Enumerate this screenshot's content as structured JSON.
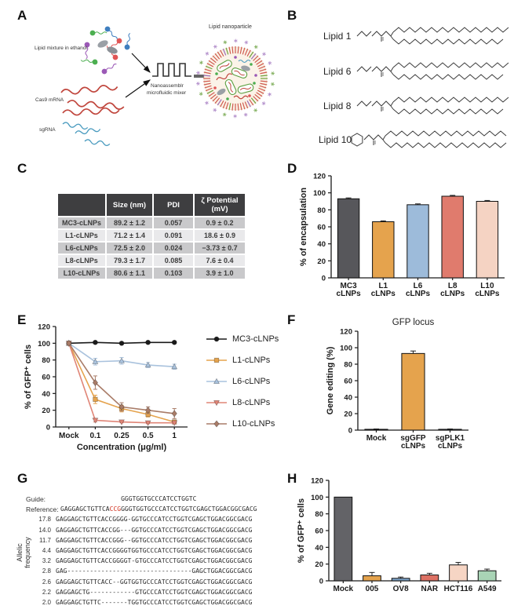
{
  "figure": {
    "panels": {
      "a": {
        "letter": "A",
        "lipid_mixture_label": "Lipid mixture in ethanol",
        "cas9_label": "Cas9 mRNA",
        "sgrna_label": "sgRNA",
        "mixer_label_line1": "Nanoassemblr",
        "mixer_label_line2": "microfluidic mixer",
        "nanoparticle_label": "Lipid nanoparticle"
      },
      "b": {
        "letter": "B",
        "lipids": [
          "Lipid 1",
          "Lipid 6",
          "Lipid 8",
          "Lipid 10"
        ]
      },
      "c": {
        "letter": "C",
        "table": {
          "col_headers": [
            "Size (nm)",
            "PDI",
            "ζ Potential (mV)"
          ],
          "rows": [
            [
              "MC3-cLNPs",
              "89.2 ± 1.2",
              "0.057",
              "0.9 ± 0.2"
            ],
            [
              "L1-cLNPs",
              "71.2 ± 1.4",
              "0.091",
              "18.6 ± 0.9"
            ],
            [
              "L6-cLNPs",
              "72.5 ± 2.0",
              "0.024",
              "−3.73 ± 0.7"
            ],
            [
              "L8-cLNPs",
              "79.3 ± 1.7",
              "0.085",
              "7.6 ± 0.4"
            ],
            [
              "L10-cLNPs",
              "80.6 ± 1.1",
              "0.103",
              "3.9 ± 1.0"
            ]
          ]
        }
      },
      "d": {
        "letter": "D"
      },
      "e": {
        "letter": "E"
      },
      "f": {
        "letter": "F"
      },
      "g": {
        "letter": "G",
        "guide_label": "Guide:",
        "reference_label": "Reference:",
        "guide_seq": "                GGGTGGTGCCCATCCTGGTC",
        "reference_prefix": "GAGGAGCTGTTCA",
        "reference_pam": "CCG",
        "reference_suffix": "GGGTGGTGCCCATCCTGGTCGAGCTGGACGGCGACG",
        "freq_axis_label": "Allelic frequency",
        "alleles": [
          {
            "freq": "17.8",
            "seq": "GAGGAGCTGTTCACCGGGG-GGTGCCCATCCTGGTCGAGCTGGACGGCGACG"
          },
          {
            "freq": "14.0",
            "seq": "GAGGAGCTGTTCACCGG---GGTGCCCATCCTGGTCGAGCTGGACGGCGACG"
          },
          {
            "freq": "11.7",
            "seq": "GAGGAGCTGTTCACCGGG--GGTGCCCATCCTGGTCGAGCTGGACGGCGACG"
          },
          {
            "freq": "4.4",
            "seq": "GAGGAGCTGTTCACCGGGGTGGTGCCCATCCTGGTCGAGCTGGACGGCGACG"
          },
          {
            "freq": "3.2",
            "seq": "GAGGAGCTGTTCACCGGGGT-GTGCCCATCCTGGTCGAGCTGGACGGCGACG"
          },
          {
            "freq": "2.8",
            "seq": "GAG---------------------------------GAGCTGGACGGCGACG"
          },
          {
            "freq": "2.6",
            "seq": "GAGGAGCTGTTCACC--GGTGGTGCCCATCCTGGTCGAGCTGGACGGCGACG"
          },
          {
            "freq": "2.2",
            "seq": "GAGGAGCTG------------GTGCCCATCCTGGTCGAGCTGGACGGCGACG"
          },
          {
            "freq": "2.0",
            "seq": "GAGGAGCTGTTC-------TGGTGCCCATCCTGGTCGAGCTGGACGGCGACG"
          }
        ]
      },
      "h": {
        "letter": "H"
      }
    }
  },
  "chart_data": [
    {
      "panel": "D",
      "type": "bar",
      "title": "",
      "ylabel": "% of encapsulation",
      "xlabel": "",
      "ylim": [
        0,
        120
      ],
      "ytick": 20,
      "grid": false,
      "categories": [
        "MC3\ncLNPs",
        "L1\ncLNPs",
        "L6\ncLNPs",
        "L8\ncLNPs",
        "L10\ncLNPs"
      ],
      "values": [
        93,
        66,
        86,
        96,
        90
      ],
      "errors": [
        1,
        1,
        1,
        1,
        1
      ],
      "colors": [
        "#57575b",
        "#e5a34d",
        "#9dbbda",
        "#e07b6d",
        "#f5d3c3"
      ]
    },
    {
      "panel": "E",
      "type": "line",
      "title": "",
      "ylabel": "% of GFP⁺ cells",
      "xlabel": "Concentration (μg/ml)",
      "ylim": [
        0,
        120
      ],
      "ytick": 20,
      "grid": false,
      "legend_position": "right",
      "x_categories": [
        "Mock",
        "0.1",
        "0.25",
        "0.5",
        "1"
      ],
      "series": [
        {
          "name": "MC3-cLNPs",
          "color": "#1a1a1a",
          "marker": "circle",
          "values": [
            100,
            101,
            100,
            101,
            101
          ],
          "errors": [
            2,
            1,
            1,
            1,
            1
          ]
        },
        {
          "name": "L1-cLNPs",
          "color": "#e5a34d",
          "marker": "square",
          "values": [
            100,
            33,
            22,
            15,
            6
          ],
          "errors": [
            2,
            5,
            4,
            3,
            2
          ]
        },
        {
          "name": "L6-cLNPs",
          "color": "#a9c2dd",
          "marker": "triangle",
          "values": [
            100,
            78,
            79,
            74,
            72
          ],
          "errors": [
            2,
            4,
            4,
            3,
            3
          ]
        },
        {
          "name": "L8-cLNPs",
          "color": "#e08577",
          "marker": "triangle-down",
          "values": [
            100,
            8,
            6,
            5,
            5
          ],
          "errors": [
            2,
            2,
            1,
            1,
            1
          ]
        },
        {
          "name": "L10-cLNPs",
          "color": "#a97c68",
          "marker": "diamond",
          "values": [
            100,
            53,
            24,
            20,
            16
          ],
          "errors": [
            2,
            8,
            5,
            4,
            6
          ]
        }
      ]
    },
    {
      "panel": "F",
      "type": "bar",
      "title": "GFP locus",
      "ylabel": "Gene editing (%)",
      "xlabel": "",
      "ylim": [
        0,
        120
      ],
      "ytick": 20,
      "grid": false,
      "categories": [
        "Mock",
        "sgGFP\ncLNPs",
        "sgPLK1\ncLNPs"
      ],
      "values": [
        1,
        93,
        1
      ],
      "errors": [
        0.4,
        3,
        0.4
      ],
      "colors": [
        "#3a3a44",
        "#e5a34d",
        "#7ba2c8"
      ]
    },
    {
      "panel": "H",
      "type": "bar",
      "title": "",
      "ylabel": "% of GFP⁺ cells",
      "xlabel": "",
      "ylim": [
        0,
        120
      ],
      "ytick": 20,
      "grid": false,
      "categories": [
        "Mock",
        "005",
        "OV8",
        "NAR",
        "HCT116",
        "A549"
      ],
      "values": [
        100,
        6,
        3,
        7,
        19,
        12
      ],
      "errors": [
        0,
        4,
        1.5,
        2,
        3,
        2
      ],
      "colors": [
        "#636367",
        "#e5a34d",
        "#7ba2c8",
        "#dd7164",
        "#f6d5c4",
        "#a9d4b6"
      ]
    }
  ]
}
